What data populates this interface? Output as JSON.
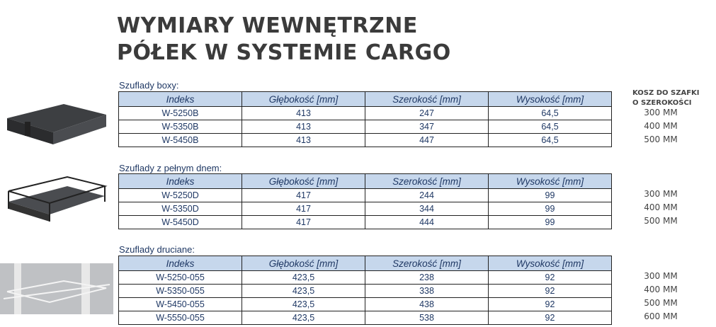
{
  "title": {
    "line1": "WYMIARY WEWNĘTRZNE",
    "line2": "PÓŁEK W SYSTEMIE CARGO"
  },
  "right_header": {
    "line1": "KOSZ DO SZAFKI",
    "line2": "O SZEROKOŚCI"
  },
  "columns": [
    "Indeks",
    "Głębokość [mm]",
    "Szerokość [mm]",
    "Wysokość [mm]"
  ],
  "sections": [
    {
      "label": "Szuflady boxy:",
      "rows": [
        [
          "W-5250B",
          "413",
          "247",
          "64,5"
        ],
        [
          "W-5350B",
          "413",
          "347",
          "64,5"
        ],
        [
          "W-5450B",
          "413",
          "447",
          "64,5"
        ]
      ],
      "widths": [
        "300 MM",
        "400 MM",
        "500 MM"
      ]
    },
    {
      "label": "Szuflady z pełnym dnem:",
      "rows": [
        [
          "W-5250D",
          "417",
          "244",
          "99"
        ],
        [
          "W-5350D",
          "417",
          "344",
          "99"
        ],
        [
          "W-5450D",
          "417",
          "444",
          "99"
        ]
      ],
      "widths": [
        "300 MM",
        "400 MM",
        "500 MM"
      ]
    },
    {
      "label": "Szuflady druciane:",
      "rows": [
        [
          "W-5250-055",
          "423,5",
          "238",
          "92"
        ],
        [
          "W-5350-055",
          "423,5",
          "338",
          "92"
        ],
        [
          "W-5450-055",
          "423,5",
          "438",
          "92"
        ],
        [
          "W-5550-055",
          "423,5",
          "538",
          "92"
        ]
      ],
      "widths": [
        "300 MM",
        "400 MM",
        "500 MM",
        "600 MM"
      ]
    }
  ],
  "colors": {
    "header_fill": "#c6d7ec",
    "text": "#1f3864"
  }
}
